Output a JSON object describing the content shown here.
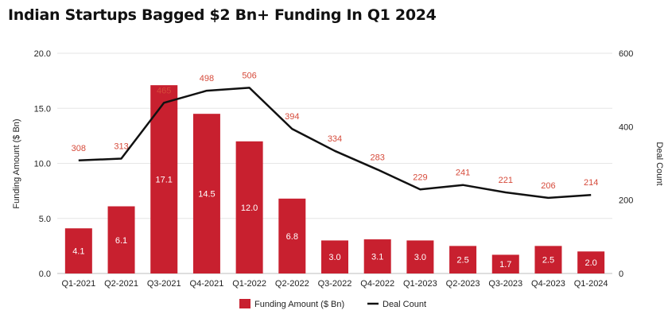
{
  "chart_data": {
    "type": "bar",
    "title": "Indian Startups Bagged $2 Bn+ Funding In Q1 2024",
    "categories": [
      "Q1-2021",
      "Q2-2021",
      "Q3-2021",
      "Q4-2021",
      "Q1-2022",
      "Q2-2022",
      "Q3-2022",
      "Q4-2022",
      "Q1-2023",
      "Q2-2023",
      "Q3-2023",
      "Q4-2023",
      "Q1-2024"
    ],
    "series": [
      {
        "name": "Funding Amount ($ Bn)",
        "type": "bar",
        "axis": "left",
        "values": [
          4.1,
          6.1,
          17.1,
          14.5,
          12.0,
          6.8,
          3.0,
          3.1,
          3.0,
          2.5,
          1.7,
          2.5,
          2.0
        ],
        "labels": [
          "4.1",
          "6.1",
          "17.1",
          "14.5",
          "12.0",
          "6.8",
          "3.0",
          "3.1",
          "3.0",
          "2.5",
          "1.7",
          "2.5",
          "2.0"
        ]
      },
      {
        "name": "Deal Count",
        "type": "line",
        "axis": "right",
        "values": [
          308,
          313,
          465,
          498,
          506,
          394,
          334,
          283,
          229,
          241,
          221,
          206,
          214
        ],
        "labels": [
          "308",
          "313",
          "465",
          "498",
          "506",
          "394",
          "334",
          "283",
          "229",
          "241",
          "221",
          "206",
          "214"
        ]
      }
    ],
    "ylabel": "Funding Amount ($ Bn)",
    "ylim": [
      0,
      20
    ],
    "yticks": [
      "0.0",
      "5.0",
      "10.0",
      "15.0",
      "20.0"
    ],
    "y2label": "Deal Count",
    "y2lim": [
      0,
      600
    ],
    "y2ticks": [
      "0",
      "200",
      "400",
      "600"
    ],
    "grid": true,
    "legend_position": "bottom",
    "colors": {
      "bar": "#c8202f",
      "line": "#111111",
      "line_label": "#d64a3a",
      "grid": "#e6e6e6"
    }
  }
}
